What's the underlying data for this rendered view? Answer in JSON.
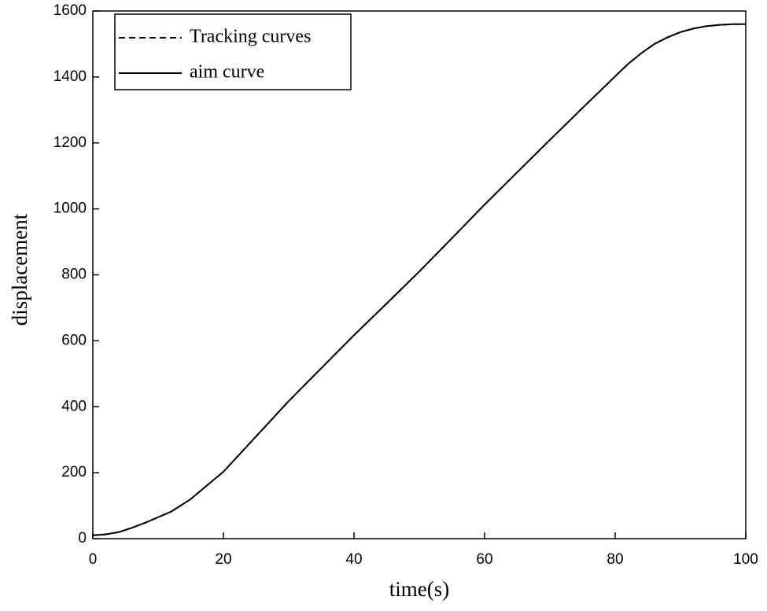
{
  "chart_data": {
    "type": "line",
    "x_label": "time(s)",
    "y_label": "displacement",
    "x": [
      0,
      2,
      4,
      6,
      8,
      10,
      12,
      15,
      18,
      20,
      25,
      30,
      35,
      40,
      45,
      50,
      55,
      60,
      65,
      70,
      75,
      80,
      82,
      84,
      86,
      88,
      90,
      92,
      94,
      96,
      98,
      100
    ],
    "series": [
      {
        "name": "Tracking curves",
        "color": "#000000",
        "linestyle": "dashed",
        "values": [
          10,
          13,
          20,
          33,
          48,
          65,
          82,
          120,
          170,
          203,
          310,
          417,
          517,
          617,
          713,
          810,
          911,
          1013,
          1111,
          1209,
          1306,
          1402,
          1440,
          1472,
          1500,
          1520,
          1536,
          1547,
          1554,
          1558,
          1560,
          1560
        ]
      },
      {
        "name": "aim curve",
        "color": "#000000",
        "linestyle": "solid",
        "values": [
          10,
          13,
          20,
          33,
          48,
          65,
          82,
          120,
          170,
          203,
          310,
          417,
          517,
          617,
          713,
          810,
          911,
          1013,
          1111,
          1209,
          1306,
          1402,
          1440,
          1472,
          1500,
          1520,
          1536,
          1547,
          1554,
          1558,
          1560,
          1560
        ]
      }
    ],
    "xlim": [
      0,
      100
    ],
    "xticks": [
      0,
      20,
      40,
      60,
      80,
      100
    ],
    "ylim": [
      0,
      1600
    ],
    "yticks": [
      0,
      200,
      400,
      600,
      800,
      1000,
      1200,
      1400,
      1600
    ],
    "grid": false,
    "legend": "upper left"
  }
}
